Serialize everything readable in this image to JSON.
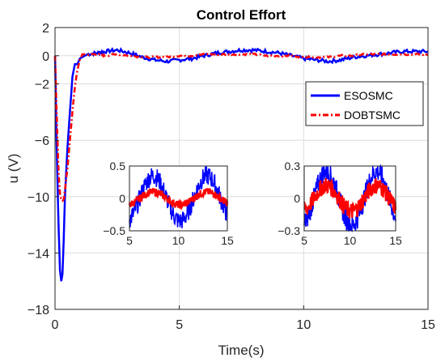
{
  "chart_data": [
    {
      "type": "line",
      "title": "Control Effort",
      "xlabel": "Time(s)",
      "ylabel": "u (V)",
      "xlim": [
        0,
        15
      ],
      "ylim": [
        -18,
        2
      ],
      "xticks": [
        0,
        5,
        10,
        15
      ],
      "yticks": [
        2,
        0,
        -2,
        -6,
        -10,
        -14,
        -18
      ],
      "grid": true,
      "legend": "upper-right, inside",
      "series": [
        {
          "name": "ESOSMC",
          "color": "#0000ff",
          "style": "solid",
          "x": [
            0,
            0.05,
            0.1,
            0.15,
            0.2,
            0.25,
            0.3,
            0.35,
            0.4,
            0.5,
            0.6,
            0.7,
            0.8,
            0.9,
            1.0,
            1.3,
            1.7,
            2.0,
            2.5,
            3.0,
            3.5,
            4.0,
            4.5,
            5.0,
            5.5,
            6.0,
            6.5,
            7.0,
            7.5,
            8.0,
            8.5,
            9.0,
            9.5,
            10.0,
            10.5,
            11.0,
            11.5,
            12.0,
            12.5,
            13.0,
            13.5,
            14.0,
            14.5,
            15.0
          ],
          "y": [
            0,
            -5,
            -9,
            -12.5,
            -15.2,
            -16,
            -15.5,
            -13,
            -10,
            -6.5,
            -4,
            -1.5,
            -0.6,
            -0.6,
            -0.2,
            0.1,
            0.2,
            0.3,
            0.4,
            0.2,
            -0.1,
            -0.3,
            -0.4,
            -0.3,
            -0.2,
            0,
            0.2,
            0.3,
            0.4,
            0.4,
            0.3,
            0.2,
            0,
            -0.2,
            -0.3,
            -0.4,
            -0.3,
            -0.1,
            0,
            0.1,
            0.2,
            0.3,
            0.3,
            0.3
          ]
        },
        {
          "name": "DOBTSMC",
          "color": "#ff0000",
          "style": "dash-dot",
          "x": [
            0,
            0.05,
            0.1,
            0.15,
            0.2,
            0.25,
            0.3,
            0.35,
            0.4,
            0.5,
            0.6,
            0.7,
            0.8,
            0.9,
            1.0,
            1.1,
            1.3,
            1.7,
            2.0,
            2.5,
            3.0,
            3.5,
            4.0,
            4.5,
            5.0,
            5.5,
            6.0,
            6.5,
            7.0,
            7.5,
            8.0,
            8.5,
            9.0,
            9.5,
            10.0,
            10.5,
            11.0,
            11.5,
            12.0,
            12.5,
            13.0,
            13.5,
            14.0,
            14.5,
            15.0
          ],
          "y": [
            0,
            -3,
            -6,
            -8.5,
            -9.8,
            -10.2,
            -10.3,
            -10.2,
            -9.5,
            -8,
            -6,
            -4,
            -2.2,
            -1.0,
            -0.3,
            0.1,
            0.1,
            0.1,
            0,
            0.1,
            0,
            -0.1,
            -0.1,
            -0.1,
            0,
            0,
            0.1,
            0.1,
            0.1,
            0.1,
            0.1,
            0,
            0,
            0,
            -0.1,
            -0.1,
            -0.1,
            0,
            0,
            0.1,
            0.1,
            0.1,
            0.1,
            0.1,
            0.1
          ]
        }
      ]
    },
    {
      "type": "line",
      "role": "inset",
      "xlim": [
        5,
        15
      ],
      "ylim": [
        -0.5,
        0.5
      ],
      "xticks": [
        5,
        10,
        15
      ],
      "yticks": [
        0.5,
        0,
        -0.5
      ],
      "grid": false,
      "series": [
        {
          "name": "ESOSMC",
          "color": "#0000ff",
          "amplitude": 0.35,
          "noise": 0.15,
          "period": 5.5
        },
        {
          "name": "DOBTSMC",
          "color": "#ff0000",
          "amplitude": 0.1,
          "noise": 0.06,
          "period": 5.5
        }
      ]
    },
    {
      "type": "line",
      "role": "inset",
      "xlim": [
        5,
        15
      ],
      "ylim": [
        -0.3,
        0.3
      ],
      "xticks": [
        5,
        10,
        15
      ],
      "yticks": [
        0.3,
        0,
        -0.3
      ],
      "grid": false,
      "series": [
        {
          "name": "ESOSMC",
          "color": "#0000ff",
          "amplitude": 0.25,
          "noise": 0.1,
          "period": 5.5
        },
        {
          "name": "DOBTSMC",
          "color": "#ff0000",
          "amplitude": 0.12,
          "noise": 0.08,
          "period": 5.5
        }
      ]
    }
  ]
}
